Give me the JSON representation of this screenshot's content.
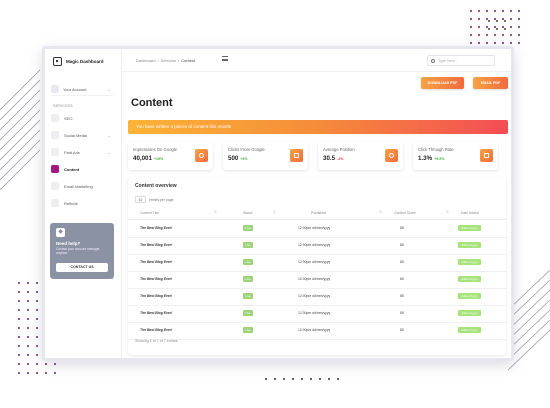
{
  "colors": {
    "accent": "#a2187c",
    "orange": "#f7a344",
    "orange_dark": "#f26a3c",
    "pink": "#f44d55",
    "green": "#9fd37a",
    "dot": "#7a1a6e"
  },
  "sidebar": {
    "app_name": "Magic Dashboard",
    "account_label": "Your Account",
    "section_label": "SERVICES",
    "items": [
      {
        "label": "SEO"
      },
      {
        "label": "Social Media"
      },
      {
        "label": "Paid Ads"
      },
      {
        "label": "Content"
      },
      {
        "label": "Email Marketing"
      },
      {
        "label": "Refinds"
      }
    ],
    "help": {
      "title": "Need help?",
      "subtitle": "Contact your account manager anytime.",
      "button": "CONTACT US"
    }
  },
  "header": {
    "breadcrumb": [
      "Dashboard",
      "Services",
      "Content"
    ],
    "search_placeholder": "Type here..."
  },
  "actions": {
    "download": "DOWNLOAD PDF",
    "email": "EMAIL PDF"
  },
  "page_title": "Content",
  "alert": "You have written 4 pieces of content this month!",
  "stats": [
    {
      "label": "Impressions On Google",
      "value": "40,001",
      "change": "+15%",
      "dir": "up"
    },
    {
      "label": "Clicks From Google",
      "value": "500",
      "change": "+3%",
      "dir": "up"
    },
    {
      "label": "Average Position",
      "value": "30.5",
      "change": "-2%",
      "dir": "down"
    },
    {
      "label": "Click Through Rate",
      "value": "1.3%",
      "change": "+5.5%",
      "dir": "up"
    }
  ],
  "table": {
    "title": "Content overview",
    "entries_value": "10",
    "entries_label": "entries per page",
    "columns": [
      "Content Title",
      "Status",
      "Published",
      "Content Score",
      "Date Added"
    ],
    "rows": [
      {
        "title": "The Best Blog Ever!",
        "status": "Live",
        "published": "12:00pm dd/mm/yyyy",
        "score": "85",
        "added": "dd/mm/yyyy"
      },
      {
        "title": "The Best Blog Ever!",
        "status": "Live",
        "published": "12:00pm dd/mm/yyyy",
        "score": "85",
        "added": "dd/mm/yyyy"
      },
      {
        "title": "The Best Blog Ever!",
        "status": "Live",
        "published": "12:00pm dd/mm/yyyy",
        "score": "85",
        "added": "dd/mm/yyyy"
      },
      {
        "title": "The Best Blog Ever!",
        "status": "Live",
        "published": "12:00pm dd/mm/yyyy",
        "score": "85",
        "added": "dd/mm/yyyy"
      },
      {
        "title": "The Best Blog Ever!",
        "status": "Live",
        "published": "12:00pm dd/mm/yyyy",
        "score": "85",
        "added": "dd/mm/yyyy"
      },
      {
        "title": "The Best Blog Ever!",
        "status": "Live",
        "published": "12:00pm dd/mm/yyyy",
        "score": "85",
        "added": "dd/mm/yyyy"
      },
      {
        "title": "The Best Blog Ever!",
        "status": "Live",
        "published": "12:00pm dd/mm/yyyy",
        "score": "85",
        "added": "dd/mm/yyyy"
      }
    ],
    "footer": "Showing 1 to 7 of 7 entries"
  }
}
